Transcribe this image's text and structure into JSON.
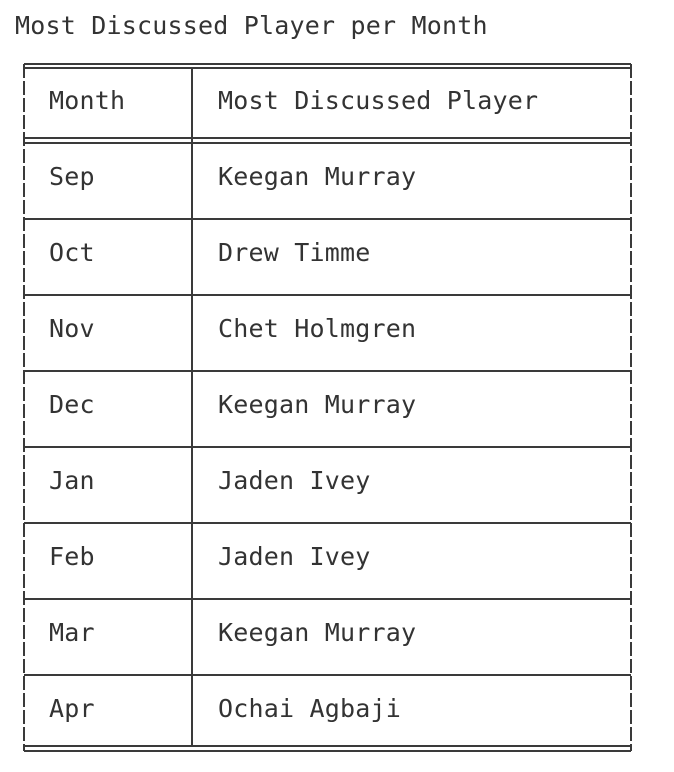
{
  "title": "Most Discussed Player per Month",
  "table": {
    "headers": [
      "Month",
      "Most Discussed Player"
    ],
    "rows": [
      [
        "Sep",
        "Keegan Murray"
      ],
      [
        "Oct",
        "Drew Timme"
      ],
      [
        "Nov",
        "Chet Holmgren"
      ],
      [
        "Dec",
        "Keegan Murray"
      ],
      [
        "Jan",
        "Jaden Ivey"
      ],
      [
        "Feb",
        "Jaden Ivey"
      ],
      [
        "Mar",
        "Keegan Murray"
      ],
      [
        "Apr",
        "Ochai Agbaji"
      ]
    ]
  },
  "colors": {
    "text": "#333333",
    "line": "#3a3a3a",
    "background": "#ffffff"
  }
}
